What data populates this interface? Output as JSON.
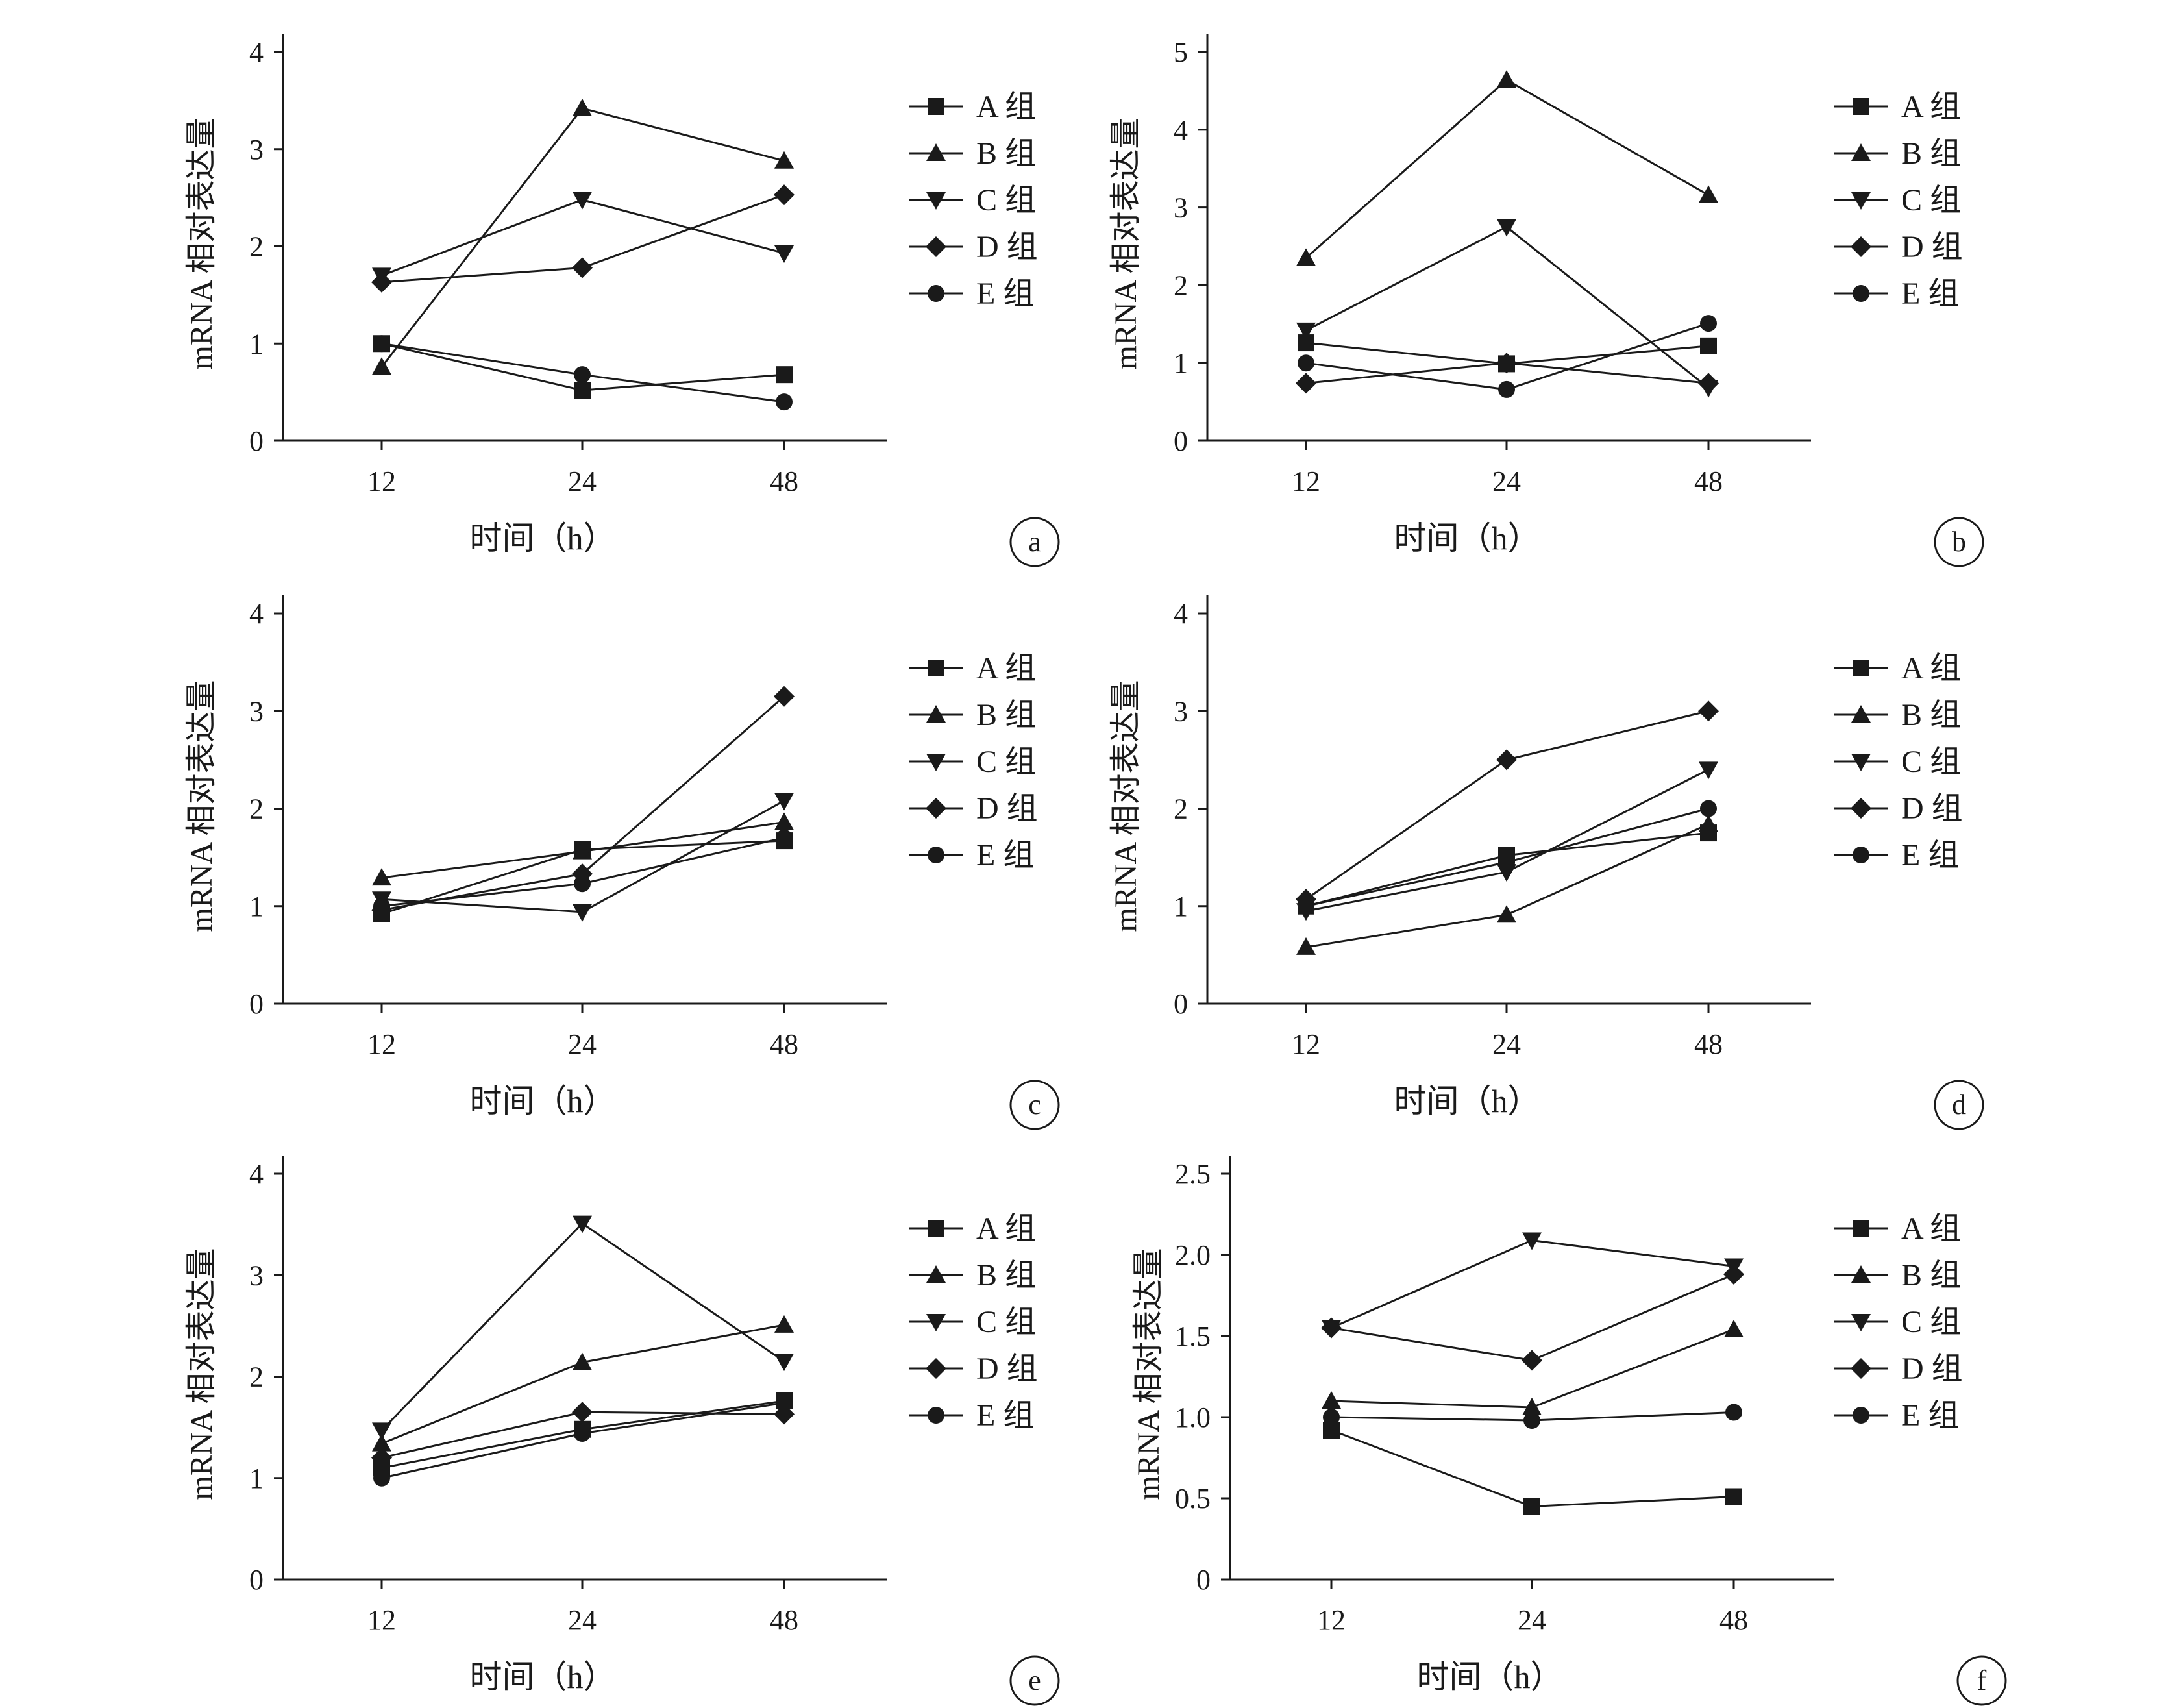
{
  "chart_data": [
    {
      "type": "line",
      "panel_label": "a",
      "x": [
        12,
        24,
        48
      ],
      "xlabel": "时间（h）",
      "ylabel": "mRNA 相对表达量",
      "ylim": [
        0,
        4
      ],
      "yticks": [
        "0",
        "1",
        "2",
        "3",
        "4"
      ],
      "series": [
        {
          "name": "A 组",
          "marker": "square",
          "values": [
            1.0,
            0.52,
            0.68
          ]
        },
        {
          "name": "B 组",
          "marker": "triangle-up",
          "values": [
            0.76,
            3.42,
            2.88
          ]
        },
        {
          "name": "C 组",
          "marker": "triangle-down",
          "values": [
            1.7,
            2.48,
            1.93
          ]
        },
        {
          "name": "D 组",
          "marker": "diamond",
          "values": [
            1.63,
            1.78,
            2.53
          ]
        },
        {
          "name": "E 组",
          "marker": "circle",
          "values": [
            1.0,
            0.68,
            0.4
          ]
        }
      ]
    },
    {
      "type": "line",
      "panel_label": "b",
      "x": [
        12,
        24,
        48
      ],
      "xlabel": "时间（h）",
      "ylabel": "mRNA 相对表达量",
      "ylim": [
        0,
        5
      ],
      "yticks": [
        "0",
        "1",
        "2",
        "3",
        "4",
        "5"
      ],
      "series": [
        {
          "name": "A 组",
          "marker": "square",
          "values": [
            1.26,
            0.99,
            1.22
          ]
        },
        {
          "name": "B 组",
          "marker": "triangle-up",
          "values": [
            2.35,
            4.64,
            3.16
          ]
        },
        {
          "name": "C 组",
          "marker": "triangle-down",
          "values": [
            1.42,
            2.75,
            0.68
          ]
        },
        {
          "name": "D 组",
          "marker": "diamond",
          "values": [
            0.74,
            1.0,
            0.74
          ]
        },
        {
          "name": "E 组",
          "marker": "circle",
          "values": [
            1.0,
            0.66,
            1.51
          ]
        }
      ]
    },
    {
      "type": "line",
      "panel_label": "c",
      "x": [
        12,
        24,
        48
      ],
      "xlabel": "时间（h）",
      "ylabel": "mRNA 相对表达量",
      "ylim": [
        0,
        4
      ],
      "yticks": [
        "0",
        "1",
        "2",
        "3",
        "4"
      ],
      "series": [
        {
          "name": "A 组",
          "marker": "square",
          "values": [
            0.92,
            1.58,
            1.67
          ]
        },
        {
          "name": "B 组",
          "marker": "triangle-up",
          "values": [
            1.29,
            1.56,
            1.86
          ]
        },
        {
          "name": "C 组",
          "marker": "triangle-down",
          "values": [
            1.07,
            0.94,
            2.08
          ]
        },
        {
          "name": "D 组",
          "marker": "diamond",
          "values": [
            0.96,
            1.33,
            3.15
          ]
        },
        {
          "name": "E 组",
          "marker": "circle",
          "values": [
            1.0,
            1.23,
            1.7
          ]
        }
      ]
    },
    {
      "type": "line",
      "panel_label": "d",
      "x": [
        12,
        24,
        48
      ],
      "xlabel": "时间（h）",
      "ylabel": "mRNA 相对表达量",
      "ylim": [
        0,
        4
      ],
      "yticks": [
        "0",
        "1",
        "2",
        "3",
        "4"
      ],
      "series": [
        {
          "name": "A 组",
          "marker": "square",
          "values": [
            1.0,
            1.52,
            1.75
          ]
        },
        {
          "name": "B 组",
          "marker": "triangle-up",
          "values": [
            0.58,
            0.91,
            1.84
          ]
        },
        {
          "name": "C 组",
          "marker": "triangle-down",
          "values": [
            0.95,
            1.35,
            2.4
          ]
        },
        {
          "name": "D 组",
          "marker": "diamond",
          "values": [
            1.07,
            2.5,
            3.0
          ]
        },
        {
          "name": "E 组",
          "marker": "circle",
          "values": [
            1.0,
            1.45,
            2.0
          ]
        }
      ]
    },
    {
      "type": "line",
      "panel_label": "e",
      "x": [
        12,
        24,
        48
      ],
      "xlabel": "时间（h）",
      "ylabel": "mRNA 相对表达量",
      "ylim": [
        0,
        4
      ],
      "yticks": [
        "0",
        "1",
        "2",
        "3",
        "4"
      ],
      "series": [
        {
          "name": "A 组",
          "marker": "square",
          "values": [
            1.1,
            1.48,
            1.76
          ]
        },
        {
          "name": "B 组",
          "marker": "triangle-up",
          "values": [
            1.34,
            2.14,
            2.51
          ]
        },
        {
          "name": "C 组",
          "marker": "triangle-down",
          "values": [
            1.47,
            3.51,
            2.15
          ]
        },
        {
          "name": "D 组",
          "marker": "diamond",
          "values": [
            1.2,
            1.65,
            1.63
          ]
        },
        {
          "name": "E 组",
          "marker": "circle",
          "values": [
            1.0,
            1.44,
            1.74
          ]
        }
      ]
    },
    {
      "type": "line",
      "panel_label": "f",
      "x": [
        12,
        24,
        48
      ],
      "xlabel": "时间（h）",
      "ylabel": "mRNA 相对表达量",
      "ylim": [
        0,
        2.5
      ],
      "yticks": [
        "0",
        "0.5",
        "1.0",
        "1.5",
        "2.0",
        "2.5"
      ],
      "series": [
        {
          "name": "A 组",
          "marker": "square",
          "values": [
            0.92,
            0.45,
            0.51
          ]
        },
        {
          "name": "B 组",
          "marker": "triangle-up",
          "values": [
            1.1,
            1.06,
            1.54
          ]
        },
        {
          "name": "C 组",
          "marker": "triangle-down",
          "values": [
            1.55,
            2.09,
            1.93
          ]
        },
        {
          "name": "D 组",
          "marker": "diamond",
          "values": [
            1.55,
            1.35,
            1.88
          ]
        },
        {
          "name": "E 组",
          "marker": "circle",
          "values": [
            1.0,
            0.98,
            1.03
          ]
        }
      ]
    }
  ]
}
